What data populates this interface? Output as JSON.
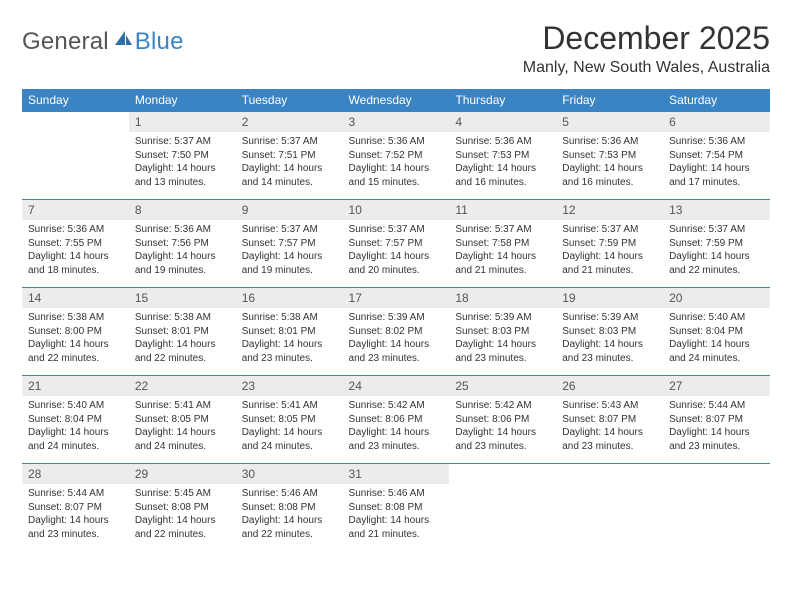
{
  "logo": {
    "general": "General",
    "blue": "Blue"
  },
  "header": {
    "month_title": "December 2025",
    "location": "Manly, New South Wales, Australia"
  },
  "calendar": {
    "day_names": [
      "Sunday",
      "Monday",
      "Tuesday",
      "Wednesday",
      "Thursday",
      "Friday",
      "Saturday"
    ],
    "header_bg": "#3b84c4",
    "header_fg": "#ffffff",
    "daynum_bg": "#ececec",
    "row_border": "#3b84c4",
    "body_fontsize": 10,
    "header_fontsize": 12,
    "start_blank": 1,
    "days": [
      {
        "n": 1,
        "sunrise": "5:37 AM",
        "sunset": "7:50 PM",
        "daylight": "14 hours and 13 minutes."
      },
      {
        "n": 2,
        "sunrise": "5:37 AM",
        "sunset": "7:51 PM",
        "daylight": "14 hours and 14 minutes."
      },
      {
        "n": 3,
        "sunrise": "5:36 AM",
        "sunset": "7:52 PM",
        "daylight": "14 hours and 15 minutes."
      },
      {
        "n": 4,
        "sunrise": "5:36 AM",
        "sunset": "7:53 PM",
        "daylight": "14 hours and 16 minutes."
      },
      {
        "n": 5,
        "sunrise": "5:36 AM",
        "sunset": "7:53 PM",
        "daylight": "14 hours and 16 minutes."
      },
      {
        "n": 6,
        "sunrise": "5:36 AM",
        "sunset": "7:54 PM",
        "daylight": "14 hours and 17 minutes."
      },
      {
        "n": 7,
        "sunrise": "5:36 AM",
        "sunset": "7:55 PM",
        "daylight": "14 hours and 18 minutes."
      },
      {
        "n": 8,
        "sunrise": "5:36 AM",
        "sunset": "7:56 PM",
        "daylight": "14 hours and 19 minutes."
      },
      {
        "n": 9,
        "sunrise": "5:37 AM",
        "sunset": "7:57 PM",
        "daylight": "14 hours and 19 minutes."
      },
      {
        "n": 10,
        "sunrise": "5:37 AM",
        "sunset": "7:57 PM",
        "daylight": "14 hours and 20 minutes."
      },
      {
        "n": 11,
        "sunrise": "5:37 AM",
        "sunset": "7:58 PM",
        "daylight": "14 hours and 21 minutes."
      },
      {
        "n": 12,
        "sunrise": "5:37 AM",
        "sunset": "7:59 PM",
        "daylight": "14 hours and 21 minutes."
      },
      {
        "n": 13,
        "sunrise": "5:37 AM",
        "sunset": "7:59 PM",
        "daylight": "14 hours and 22 minutes."
      },
      {
        "n": 14,
        "sunrise": "5:38 AM",
        "sunset": "8:00 PM",
        "daylight": "14 hours and 22 minutes."
      },
      {
        "n": 15,
        "sunrise": "5:38 AM",
        "sunset": "8:01 PM",
        "daylight": "14 hours and 22 minutes."
      },
      {
        "n": 16,
        "sunrise": "5:38 AM",
        "sunset": "8:01 PM",
        "daylight": "14 hours and 23 minutes."
      },
      {
        "n": 17,
        "sunrise": "5:39 AM",
        "sunset": "8:02 PM",
        "daylight": "14 hours and 23 minutes."
      },
      {
        "n": 18,
        "sunrise": "5:39 AM",
        "sunset": "8:03 PM",
        "daylight": "14 hours and 23 minutes."
      },
      {
        "n": 19,
        "sunrise": "5:39 AM",
        "sunset": "8:03 PM",
        "daylight": "14 hours and 23 minutes."
      },
      {
        "n": 20,
        "sunrise": "5:40 AM",
        "sunset": "8:04 PM",
        "daylight": "14 hours and 24 minutes."
      },
      {
        "n": 21,
        "sunrise": "5:40 AM",
        "sunset": "8:04 PM",
        "daylight": "14 hours and 24 minutes."
      },
      {
        "n": 22,
        "sunrise": "5:41 AM",
        "sunset": "8:05 PM",
        "daylight": "14 hours and 24 minutes."
      },
      {
        "n": 23,
        "sunrise": "5:41 AM",
        "sunset": "8:05 PM",
        "daylight": "14 hours and 24 minutes."
      },
      {
        "n": 24,
        "sunrise": "5:42 AM",
        "sunset": "8:06 PM",
        "daylight": "14 hours and 23 minutes."
      },
      {
        "n": 25,
        "sunrise": "5:42 AM",
        "sunset": "8:06 PM",
        "daylight": "14 hours and 23 minutes."
      },
      {
        "n": 26,
        "sunrise": "5:43 AM",
        "sunset": "8:07 PM",
        "daylight": "14 hours and 23 minutes."
      },
      {
        "n": 27,
        "sunrise": "5:44 AM",
        "sunset": "8:07 PM",
        "daylight": "14 hours and 23 minutes."
      },
      {
        "n": 28,
        "sunrise": "5:44 AM",
        "sunset": "8:07 PM",
        "daylight": "14 hours and 23 minutes."
      },
      {
        "n": 29,
        "sunrise": "5:45 AM",
        "sunset": "8:08 PM",
        "daylight": "14 hours and 22 minutes."
      },
      {
        "n": 30,
        "sunrise": "5:46 AM",
        "sunset": "8:08 PM",
        "daylight": "14 hours and 22 minutes."
      },
      {
        "n": 31,
        "sunrise": "5:46 AM",
        "sunset": "8:08 PM",
        "daylight": "14 hours and 21 minutes."
      }
    ],
    "labels": {
      "sunrise": "Sunrise:",
      "sunset": "Sunset:",
      "daylight": "Daylight:"
    }
  }
}
